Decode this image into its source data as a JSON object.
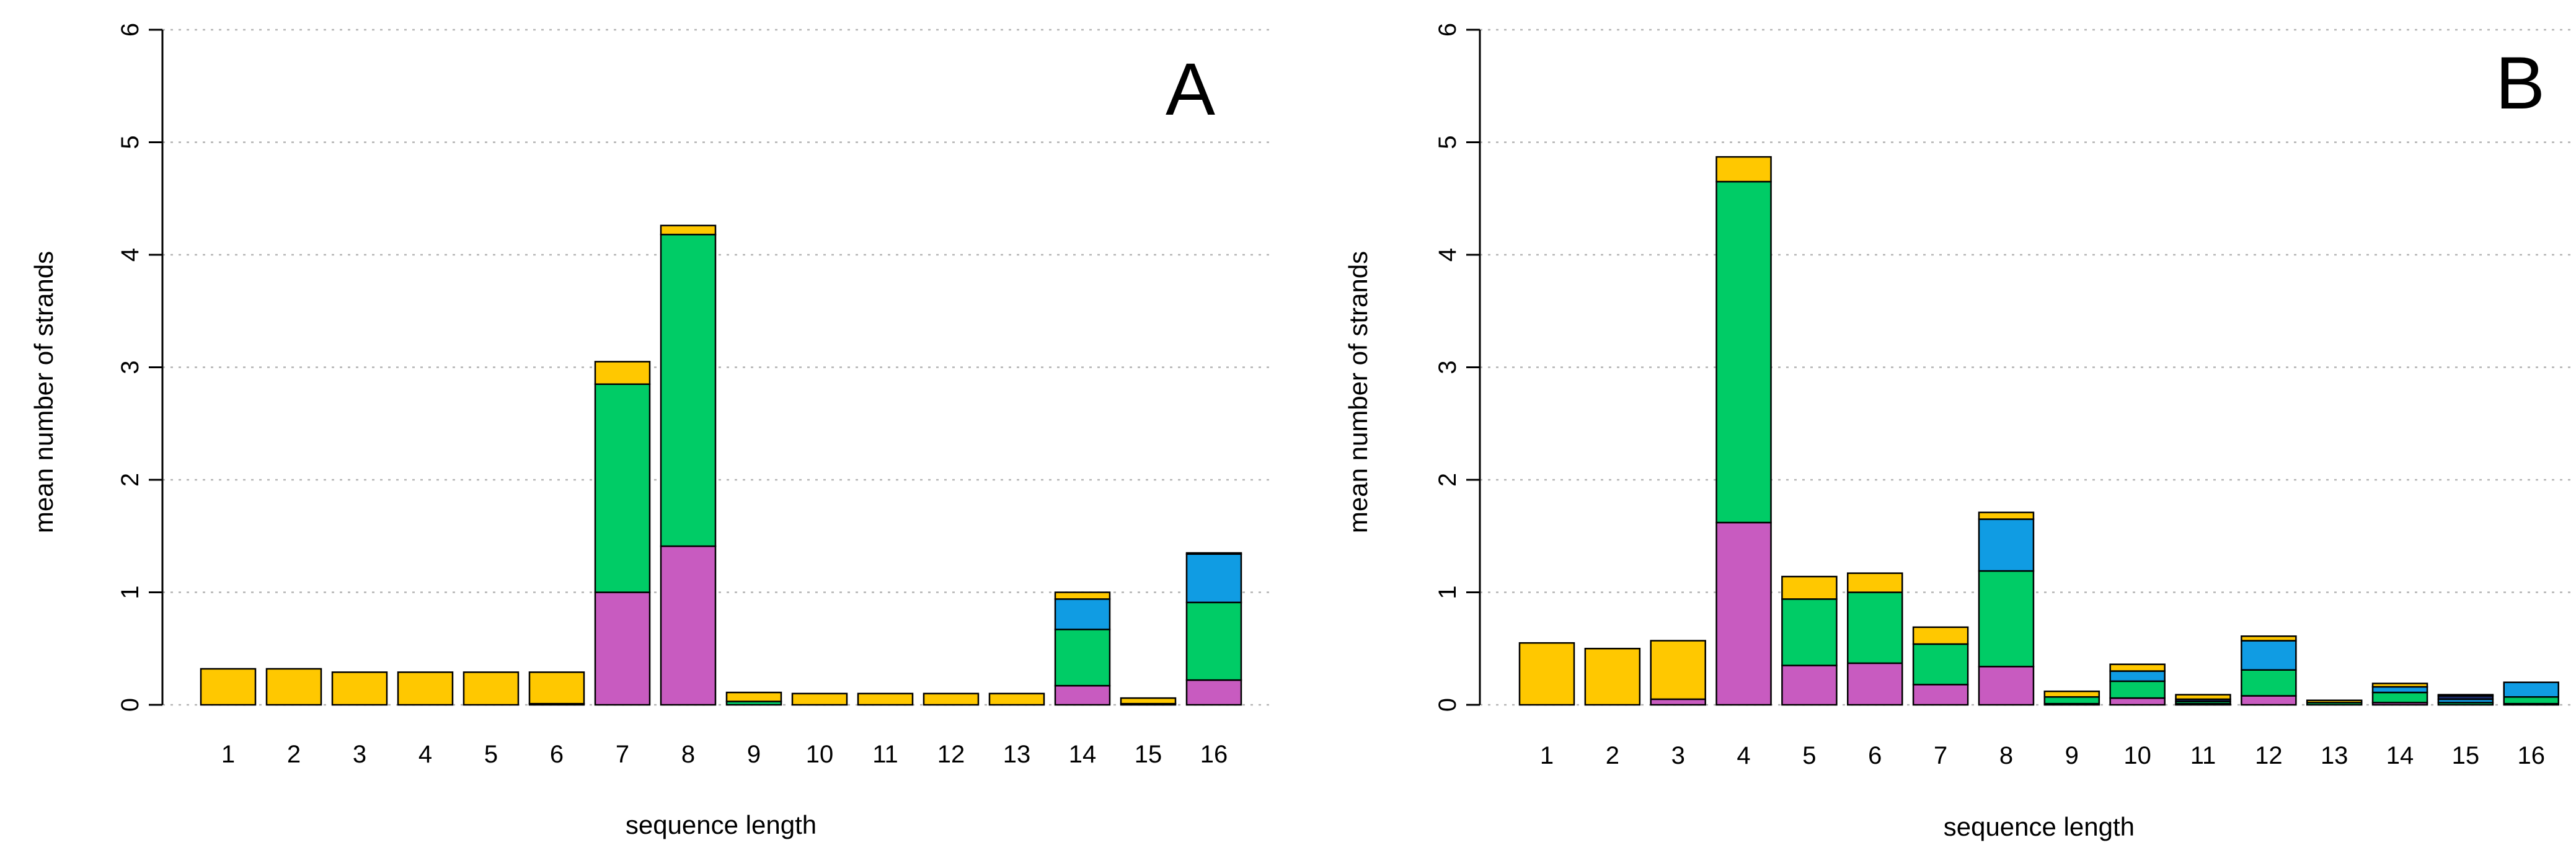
{
  "colors": {
    "magenta": "#C85BC0",
    "green": "#00CC66",
    "blue": "#109CE3",
    "yellow": "#FFC800",
    "navy": "#1A2A66",
    "grid": "#B4B4B4"
  },
  "chart_data": [
    {
      "type": "bar",
      "stacked": true,
      "panel_label": "A",
      "xlabel": "sequence length",
      "ylabel": "mean number of strands",
      "ylim": [
        0,
        6
      ],
      "yticks": [
        "0",
        "1",
        "2",
        "3",
        "4",
        "5",
        "6"
      ],
      "grid": "horizontal dotted",
      "categories": [
        "1",
        "2",
        "3",
        "4",
        "5",
        "6",
        "7",
        "8",
        "9",
        "10",
        "11",
        "12",
        "13",
        "14",
        "15",
        "16"
      ],
      "series": [
        {
          "name": "magenta",
          "color": "#C85BC0",
          "values": [
            0,
            0,
            0,
            0,
            0,
            0,
            1.0,
            1.41,
            0,
            0,
            0,
            0,
            0,
            0.17,
            0,
            0.22
          ]
        },
        {
          "name": "green",
          "color": "#00CC66",
          "values": [
            0,
            0,
            0,
            0,
            0,
            0.01,
            1.85,
            2.77,
            0.03,
            0,
            0,
            0,
            0,
            0.5,
            0.01,
            0.69
          ]
        },
        {
          "name": "blue",
          "color": "#109CE3",
          "values": [
            0,
            0,
            0,
            0,
            0,
            0,
            0,
            0,
            0,
            0,
            0,
            0,
            0,
            0.27,
            0,
            0.43
          ]
        },
        {
          "name": "yellow",
          "color": "#FFC800",
          "values": [
            0.32,
            0.32,
            0.29,
            0.29,
            0.29,
            0.28,
            0.2,
            0.08,
            0.08,
            0.1,
            0.1,
            0.1,
            0.1,
            0.06,
            0.05,
            0.01
          ]
        }
      ]
    },
    {
      "type": "bar",
      "stacked": true,
      "panel_label": "B",
      "xlabel": "sequence length",
      "ylabel": "mean number of strands",
      "ylim": [
        0,
        6
      ],
      "yticks": [
        "0",
        "1",
        "2",
        "3",
        "4",
        "5",
        "6"
      ],
      "grid": "horizontal dotted",
      "categories": [
        "1",
        "2",
        "3",
        "4",
        "5",
        "6",
        "7",
        "8",
        "9",
        "10",
        "11",
        "12",
        "13",
        "14",
        "15",
        "16"
      ],
      "series": [
        {
          "name": "magenta",
          "color": "#C85BC0",
          "values": [
            0,
            0,
            0.05,
            1.62,
            0.35,
            0.37,
            0.18,
            0.34,
            0.01,
            0.06,
            0.01,
            0.08,
            0,
            0.02,
            0,
            0.01
          ]
        },
        {
          "name": "green",
          "color": "#00CC66",
          "values": [
            0,
            0,
            0,
            3.03,
            0.59,
            0.63,
            0.36,
            0.85,
            0.06,
            0.15,
            0.02,
            0.23,
            0.02,
            0.09,
            0.02,
            0.06
          ]
        },
        {
          "name": "blue",
          "color": "#109CE3",
          "values": [
            0,
            0,
            0,
            0,
            0,
            0,
            0,
            0.46,
            0,
            0.09,
            0,
            0.26,
            0,
            0.05,
            0.03,
            0.13
          ]
        },
        {
          "name": "navy",
          "color": "#1A2A66",
          "values": [
            0,
            0,
            0,
            0,
            0,
            0,
            0,
            0,
            0,
            0,
            0.02,
            0,
            0,
            0,
            0.03,
            0
          ]
        },
        {
          "name": "yellow",
          "color": "#FFC800",
          "values": [
            0.55,
            0.5,
            0.52,
            0.22,
            0.2,
            0.17,
            0.15,
            0.06,
            0.05,
            0.06,
            0.04,
            0.04,
            0.02,
            0.03,
            0.01,
            0
          ]
        }
      ]
    }
  ]
}
